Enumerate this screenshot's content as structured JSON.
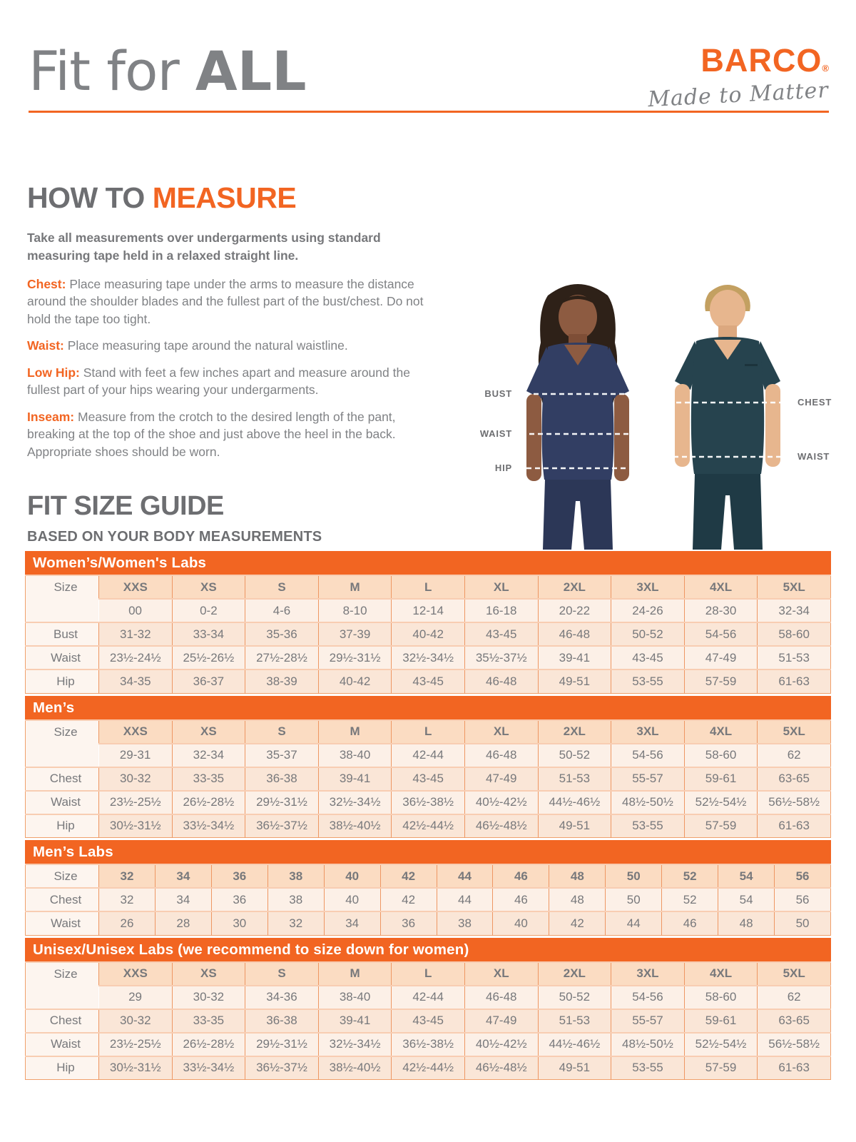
{
  "colors": {
    "accent": "#F26522",
    "heading_gray": "#6D6E71",
    "body_gray": "#808285",
    "scrub_navy": "#323E63",
    "scrub_teal": "#26434E"
  },
  "header": {
    "title_regular": "Fit for ",
    "title_bold": "ALL"
  },
  "logo": {
    "brand": "BARCO",
    "registered": "®",
    "tagline": "Made to Matter"
  },
  "how_to_measure": {
    "heading_gray": "HOW TO ",
    "heading_orange": "MEASURE",
    "intro": "Take all measurements over undergarments using standard measuring tape held in a relaxed straight line.",
    "items": [
      {
        "label": "Chest:",
        "text": " Place measuring tape under the arms to measure the distance around the shoulder blades and the fullest part of the bust/chest. Do not hold the tape too tight."
      },
      {
        "label": "Waist:",
        "text": " Place measuring tape around the natural waistline."
      },
      {
        "label": "Low Hip:",
        "text": " Stand with feet a few inches apart and measure around the fullest part of your hips wearing your undergarments."
      },
      {
        "label": "Inseam:",
        "text": " Measure from the crotch to the desired length of the pant, breaking at the top of the shoe and just above the heel in the back. Appropriate shoes should be worn."
      }
    ]
  },
  "figure": {
    "labels_left": [
      "BUST",
      "WAIST",
      "HIP"
    ],
    "labels_right": [
      "CHEST",
      "WAIST"
    ]
  },
  "size_guide": {
    "heading": "FIT SIZE GUIDE",
    "subheading": "BASED ON YOUR BODY MEASUREMENTS",
    "tables": [
      {
        "title": "Women’s/Women's Labs",
        "header_label": "Size",
        "columns": [
          "XXS",
          "XS",
          "S",
          "M",
          "L",
          "XL",
          "2XL",
          "3XL",
          "4XL",
          "5XL"
        ],
        "subheader": [
          "00",
          "0-2",
          "4-6",
          "8-10",
          "12-14",
          "16-18",
          "20-22",
          "24-26",
          "28-30",
          "32-34"
        ],
        "rows": [
          {
            "label": "Bust",
            "cells": [
              "31-32",
              "33-34",
              "35-36",
              "37-39",
              "40-42",
              "43-45",
              "46-48",
              "50-52",
              "54-56",
              "58-60"
            ]
          },
          {
            "label": "Waist",
            "cells": [
              "23½-24½",
              "25½-26½",
              "27½-28½",
              "29½-31½",
              "32½-34½",
              "35½-37½",
              "39-41",
              "43-45",
              "47-49",
              "51-53"
            ]
          },
          {
            "label": "Hip",
            "cells": [
              "34-35",
              "36-37",
              "38-39",
              "40-42",
              "43-45",
              "46-48",
              "49-51",
              "53-55",
              "57-59",
              "61-63"
            ]
          }
        ]
      },
      {
        "title": "Men’s",
        "header_label": "Size",
        "columns": [
          "XXS",
          "XS",
          "S",
          "M",
          "L",
          "XL",
          "2XL",
          "3XL",
          "4XL",
          "5XL"
        ],
        "subheader": [
          "29-31",
          "32-34",
          "35-37",
          "38-40",
          "42-44",
          "46-48",
          "50-52",
          "54-56",
          "58-60",
          "62"
        ],
        "rows": [
          {
            "label": "Chest",
            "cells": [
              "30-32",
              "33-35",
              "36-38",
              "39-41",
              "43-45",
              "47-49",
              "51-53",
              "55-57",
              "59-61",
              "63-65"
            ]
          },
          {
            "label": "Waist",
            "cells": [
              "23½-25½",
              "26½-28½",
              "29½-31½",
              "32½-34½",
              "36½-38½",
              "40½-42½",
              "44½-46½",
              "48½-50½",
              "52½-54½",
              "56½-58½"
            ]
          },
          {
            "label": "Hip",
            "cells": [
              "30½-31½",
              "33½-34½",
              "36½-37½",
              "38½-40½",
              "42½-44½",
              "46½-48½",
              "49-51",
              "53-55",
              "57-59",
              "61-63"
            ]
          }
        ]
      },
      {
        "title": "Men’s Labs",
        "header_label": "Size",
        "columns": [
          "32",
          "34",
          "36",
          "38",
          "40",
          "42",
          "44",
          "46",
          "48",
          "50",
          "52",
          "54",
          "56"
        ],
        "rows": [
          {
            "label": "Chest",
            "cells": [
              "32",
              "34",
              "36",
              "38",
              "40",
              "42",
              "44",
              "46",
              "48",
              "50",
              "52",
              "54",
              "56"
            ]
          },
          {
            "label": "Waist",
            "cells": [
              "26",
              "28",
              "30",
              "32",
              "34",
              "36",
              "38",
              "40",
              "42",
              "44",
              "46",
              "48",
              "50"
            ]
          }
        ]
      },
      {
        "title": "Unisex/Unisex Labs (we recommend to size down for women)",
        "header_label": "Size",
        "columns": [
          "XXS",
          "XS",
          "S",
          "M",
          "L",
          "XL",
          "2XL",
          "3XL",
          "4XL",
          "5XL"
        ],
        "subheader": [
          "29",
          "30-32",
          "34-36",
          "38-40",
          "42-44",
          "46-48",
          "50-52",
          "54-56",
          "58-60",
          "62"
        ],
        "rows": [
          {
            "label": "Chest",
            "cells": [
              "30-32",
              "33-35",
              "36-38",
              "39-41",
              "43-45",
              "47-49",
              "51-53",
              "55-57",
              "59-61",
              "63-65"
            ]
          },
          {
            "label": "Waist",
            "cells": [
              "23½-25½",
              "26½-28½",
              "29½-31½",
              "32½-34½",
              "36½-38½",
              "40½-42½",
              "44½-46½",
              "48½-50½",
              "52½-54½",
              "56½-58½"
            ]
          },
          {
            "label": "Hip",
            "cells": [
              "30½-31½",
              "33½-34½",
              "36½-37½",
              "38½-40½",
              "42½-44½",
              "46½-48½",
              "49-51",
              "53-55",
              "57-59",
              "61-63"
            ]
          }
        ]
      }
    ]
  }
}
